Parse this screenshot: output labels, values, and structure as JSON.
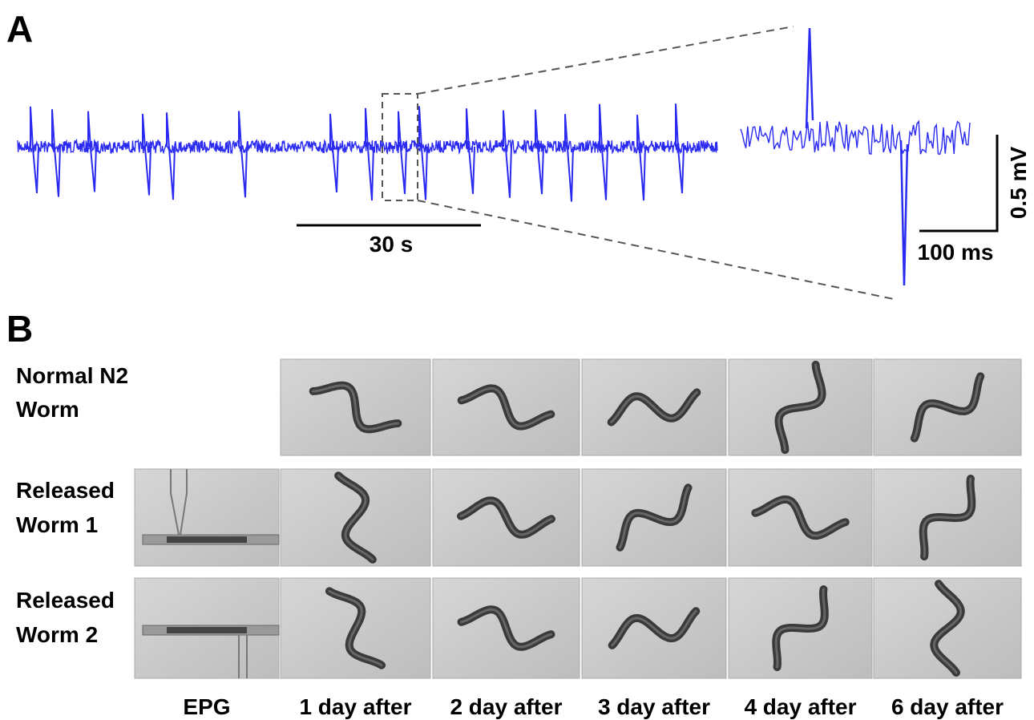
{
  "panel_a": {
    "label": "A",
    "time_scale": "30 s",
    "inset_voltage_scale": "0.5 mV",
    "inset_time_scale": "100 ms"
  },
  "panel_b": {
    "label": "B",
    "rows": [
      {
        "label_lines": [
          "Normal N2",
          "Worm"
        ]
      },
      {
        "label_lines": [
          "Released",
          "Worm 1"
        ]
      },
      {
        "label_lines": [
          "Released",
          "Worm 2"
        ]
      }
    ],
    "columns": [
      "EPG",
      "1 day after",
      "2 day after",
      "3 day after",
      "4 day after",
      "6 day after"
    ]
  }
}
